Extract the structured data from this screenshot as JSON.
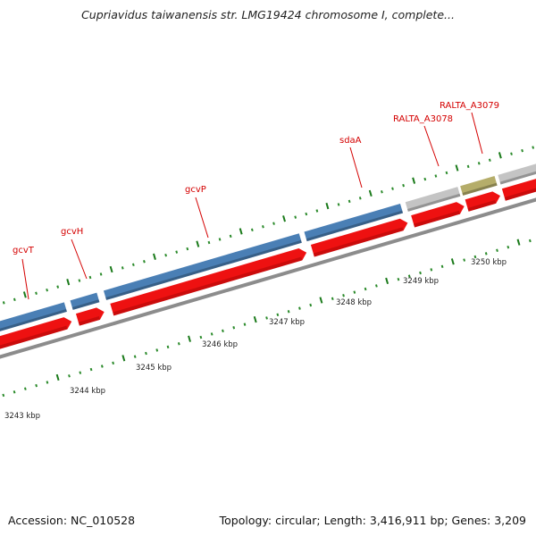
{
  "title": "Cupriavidus taiwanensis str. LMG19424 chromosome I, complete...",
  "footer": {
    "accession": "Accession: NC_010528",
    "summary": "Topology: circular; Length: 3,416,911 bp; Genes: 3,209"
  },
  "colors": {
    "forward_feature": "#4a7fb5",
    "cds": "#ee1111",
    "grey_feature": "#c4c4c4",
    "olive_feature": "#b5ad6a",
    "backbone": "#8c8c8c",
    "tick_major": "#1a7a1a",
    "tick_minor": "#2a8a2a",
    "label": "#d40000"
  },
  "genes": [
    {
      "name": "gcvT"
    },
    {
      "name": "gcvH"
    },
    {
      "name": "gcvP"
    },
    {
      "name": "sdaA"
    },
    {
      "name": "RALTA_A3078"
    },
    {
      "name": "RALTA_A3079"
    }
  ],
  "scale_labels": [
    "3243 kbp",
    "3244 kbp",
    "3245 kbp",
    "3246 kbp",
    "3247 kbp",
    "3248 kbp",
    "3249 kbp",
    "3250 kbp"
  ]
}
